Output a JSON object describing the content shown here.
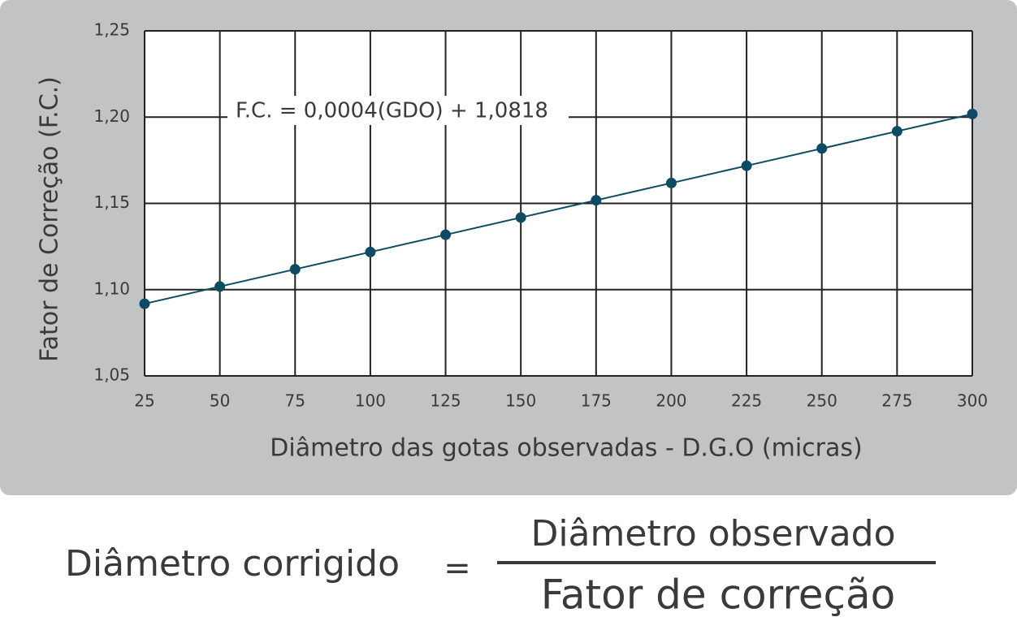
{
  "chart_data": {
    "type": "line",
    "x": [
      25,
      50,
      75,
      100,
      125,
      150,
      175,
      200,
      225,
      250,
      275,
      300
    ],
    "values": [
      1.0918,
      1.1018,
      1.1118,
      1.1218,
      1.1318,
      1.1418,
      1.1518,
      1.1618,
      1.1718,
      1.1818,
      1.1918,
      1.2018
    ],
    "color": "#0d4a63",
    "xlim": [
      25,
      300
    ],
    "xticks": [
      25,
      50,
      75,
      100,
      125,
      150,
      175,
      200,
      225,
      250,
      275,
      300
    ],
    "ylim": [
      1.05,
      1.25
    ],
    "yticks": [
      {
        "value": 1.05,
        "label": "1,05"
      },
      {
        "value": 1.1,
        "label": "1,10"
      },
      {
        "value": 1.15,
        "label": "1,15"
      },
      {
        "value": 1.2,
        "label": "1,20"
      },
      {
        "value": 1.25,
        "label": "1,25"
      }
    ],
    "grid": true,
    "xlabel": "Diâmetro das gotas observadas - D.G.O (micras)",
    "ylabel": "Fator de Correção (F.C.)",
    "annotation": "F.C. =  0,0004(GDO) + 1,0818"
  },
  "formula": {
    "lhs": "Diâmetro corrigido",
    "equals": "=",
    "numerator": "Diâmetro observado",
    "denominator": "Fator de correção"
  }
}
